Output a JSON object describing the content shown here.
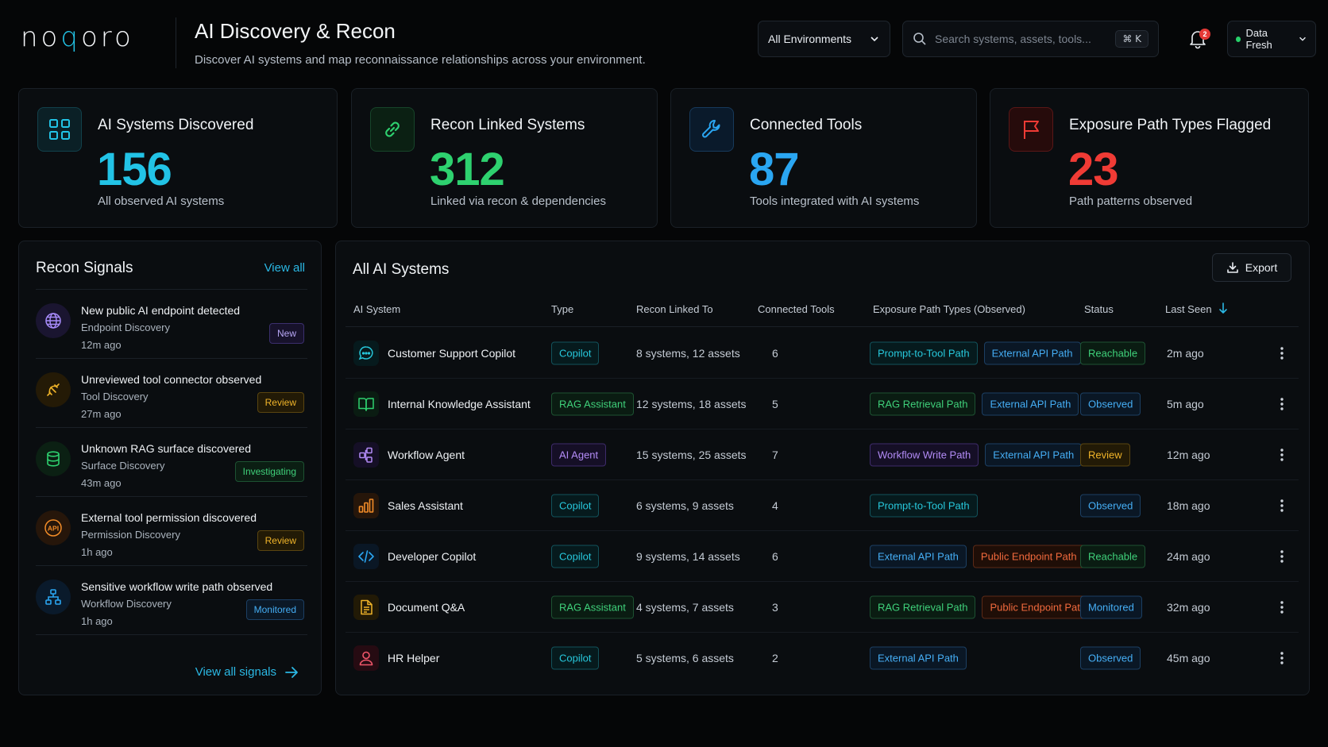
{
  "header": {
    "logo_pre": "no",
    "logo_q": "q",
    "logo_post": "oro",
    "title": "AI Discovery & Recon",
    "subtitle": "Discover AI systems and map reconnaissance relationships across your environment.",
    "env_select": "All Environments",
    "search_placeholder": "Search systems, assets, tools...",
    "search_shortcut": "⌘  K",
    "notif_count": "2",
    "data_status": "Data Fresh"
  },
  "stats": [
    {
      "label": "AI Systems Discovered",
      "value": "156",
      "desc": "All observed AI systems",
      "color": "#22c3e6"
    },
    {
      "label": "Recon Linked Systems",
      "value": "312",
      "desc": "Linked via recon & dependencies",
      "color": "#2ed16f"
    },
    {
      "label": "Connected Tools",
      "value": "87",
      "desc": "Tools integrated with AI systems",
      "color": "#2aa6f2"
    },
    {
      "label": "Exposure Path Types Flagged",
      "value": "23",
      "desc": "Path patterns observed",
      "color": "#f03b35"
    }
  ],
  "signals": {
    "title": "Recon Signals",
    "view_all": "View all",
    "footer": "View all signals",
    "items": [
      {
        "title": "New public AI endpoint detected",
        "category": "Endpoint Discovery",
        "age": "12m ago",
        "badge": "New"
      },
      {
        "title": "Unreviewed tool connector observed",
        "category": "Tool Discovery",
        "age": "27m ago",
        "badge": "Review"
      },
      {
        "title": "Unknown RAG surface discovered",
        "category": "Surface Discovery",
        "age": "43m ago",
        "badge": "Investigating"
      },
      {
        "title": "External tool permission discovered",
        "category": "Permission Discovery",
        "age": "1h ago",
        "badge": "Review"
      },
      {
        "title": "Sensitive workflow write path observed",
        "category": "Workflow Discovery",
        "age": "1h ago",
        "badge": "Monitored"
      }
    ]
  },
  "systems": {
    "title": "All AI Systems",
    "export": "Export",
    "columns": {
      "system": "AI System",
      "type": "Type",
      "linked": "Recon Linked To",
      "tools": "Connected Tools",
      "exposure": "Exposure Path Types (Observed)",
      "status": "Status",
      "seen": "Last Seen"
    },
    "rows": [
      {
        "name": "Customer Support Copilot",
        "type": "Copilot",
        "linked": "8 systems, 12 assets",
        "tools": "6",
        "exp1": "Prompt-to-Tool Path",
        "exp2": "External API Path",
        "status": "Reachable",
        "seen": "2m ago"
      },
      {
        "name": "Internal Knowledge Assistant",
        "type": "RAG Assistant",
        "linked": "12 systems, 18 assets",
        "tools": "5",
        "exp1": "RAG Retrieval Path",
        "exp2": "External API Path",
        "status": "Observed",
        "seen": "5m ago"
      },
      {
        "name": "Workflow Agent",
        "type": "AI Agent",
        "linked": "15 systems, 25 assets",
        "tools": "7",
        "exp1": "Workflow Write Path",
        "exp2": "External API Path",
        "status": "Review",
        "seen": "12m ago"
      },
      {
        "name": "Sales Assistant",
        "type": "Copilot",
        "linked": "6 systems, 9 assets",
        "tools": "4",
        "exp1": "Prompt-to-Tool Path",
        "exp2": "",
        "status": "Observed",
        "seen": "18m ago"
      },
      {
        "name": "Developer Copilot",
        "type": "Copilot",
        "linked": "9 systems, 14 assets",
        "tools": "6",
        "exp1": "External API Path",
        "exp2": "Public Endpoint Path",
        "status": "Reachable",
        "seen": "24m ago"
      },
      {
        "name": "Document Q&A",
        "type": "RAG Assistant",
        "linked": "4 systems, 7 assets",
        "tools": "3",
        "exp1": "RAG Retrieval Path",
        "exp2": "Public Endpoint Path",
        "status": "Monitored",
        "seen": "32m ago"
      },
      {
        "name": "HR Helper",
        "type": "Copilot",
        "linked": "5 systems, 6 assets",
        "tools": "2",
        "exp1": "External API Path",
        "exp2": "",
        "status": "Observed",
        "seen": "45m ago"
      }
    ]
  }
}
